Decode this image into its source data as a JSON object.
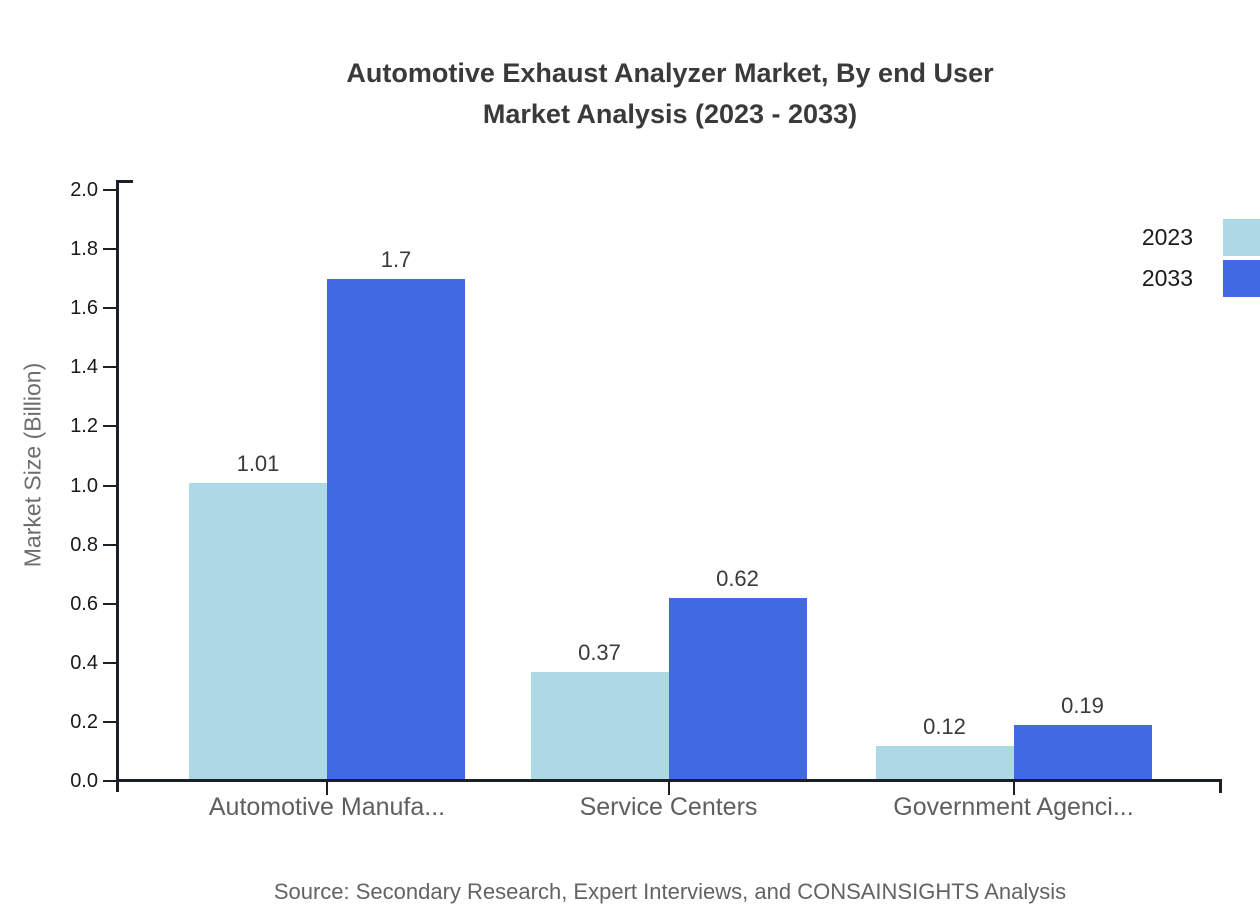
{
  "chart": {
    "title_line1": "Automotive Exhaust Analyzer Market, By end User",
    "title_line2": "Market Analysis (2023 - 2033)",
    "ylabel": "Market Size (Billion)",
    "source": "Source: Secondary Research, Expert Interviews, and CONSAINSIGHTS Analysis"
  },
  "chart_data": {
    "type": "bar",
    "title": "Automotive Exhaust Analyzer Market, By end User Market Analysis (2023 - 2033)",
    "categories": [
      "Automotive Manufa...",
      "Service Centers",
      "Government Agenci..."
    ],
    "series": [
      {
        "name": "2023",
        "color": "#add8e6",
        "values": [
          1.01,
          0.37,
          0.12
        ]
      },
      {
        "name": "2033",
        "color": "#4169e1",
        "values": [
          1.7,
          0.62,
          0.19
        ]
      }
    ],
    "xlabel": "",
    "ylabel": "Market Size (Billion)",
    "ylim": [
      0,
      2.0
    ],
    "yticks": [
      0.0,
      0.2,
      0.4,
      0.6,
      0.8,
      1.0,
      1.2,
      1.4,
      1.6,
      1.8,
      2.0
    ],
    "grid": false,
    "legend_position": "upper-right",
    "bar_value_labels": true,
    "axis_color": "#1b1f27"
  }
}
